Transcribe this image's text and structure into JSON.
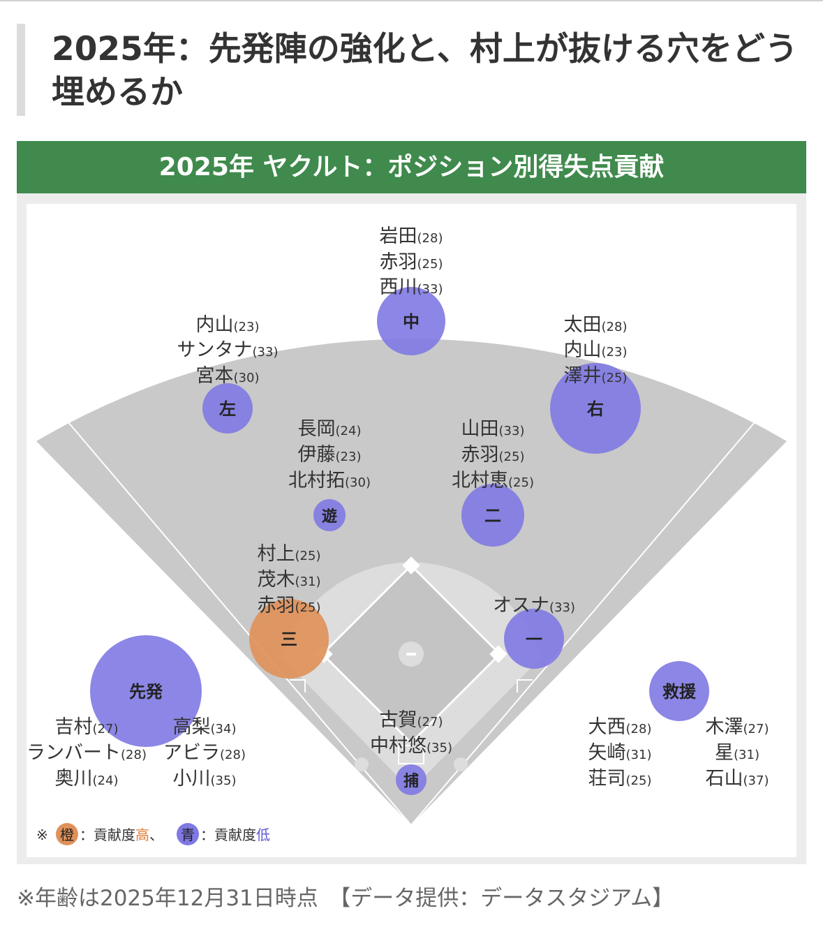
{
  "heading": "2025年：先発陣の強化と、村上が抜ける穴をどう埋めるか",
  "banner": "2025年 ヤクルト：ポジション別得失点貢献",
  "colors": {
    "banner": "#3f8a4c",
    "high": "#e0915a",
    "low": "#7f79e3",
    "field": "#c9c9c9",
    "infield": "#dddddd"
  },
  "positions": {
    "cf": {
      "label": "中",
      "players": [
        {
          "name": "岩田",
          "age": "(28)"
        },
        {
          "name": "赤羽",
          "age": "(25)"
        },
        {
          "name": "西川",
          "age": "(33)"
        }
      ]
    },
    "lf": {
      "label": "左",
      "players": [
        {
          "name": "内山",
          "age": "(23)"
        },
        {
          "name": "サンタナ",
          "age": "(33)"
        },
        {
          "name": "宮本",
          "age": "(30)"
        }
      ]
    },
    "rf": {
      "label": "右",
      "players": [
        {
          "name": "太田",
          "age": "(28)"
        },
        {
          "name": "内山",
          "age": "(23)"
        },
        {
          "name": "澤井",
          "age": "(25)"
        }
      ]
    },
    "ss": {
      "label": "遊",
      "players": [
        {
          "name": "長岡",
          "age": "(24)"
        },
        {
          "name": "伊藤",
          "age": "(23)"
        },
        {
          "name": "北村拓",
          "age": "(30)"
        }
      ]
    },
    "2b": {
      "label": "二",
      "players": [
        {
          "name": "山田",
          "age": "(33)"
        },
        {
          "name": "赤羽",
          "age": "(25)"
        },
        {
          "name": "北村恵",
          "age": "(25)"
        }
      ]
    },
    "3b": {
      "label": "三",
      "players": [
        {
          "name": "村上",
          "age": "(25)"
        },
        {
          "name": "茂木",
          "age": "(31)"
        },
        {
          "name": "赤羽",
          "age": "(25)"
        }
      ]
    },
    "1b": {
      "label": "一",
      "players": [
        {
          "name": "オスナ",
          "age": "(33)"
        }
      ]
    },
    "c": {
      "label": "捕",
      "players": [
        {
          "name": "古賀",
          "age": "(27)"
        },
        {
          "name": "中村悠",
          "age": "(35)"
        }
      ]
    },
    "sp": {
      "label": "先発",
      "players": [
        {
          "name": "吉村",
          "age": "(27)"
        },
        {
          "name": "ランバート",
          "age": "(28)"
        },
        {
          "name": "奥川",
          "age": "(24)"
        },
        {
          "name": "高梨",
          "age": "(34)"
        },
        {
          "name": "アビラ",
          "age": "(28)"
        },
        {
          "name": "小川",
          "age": "(35)"
        }
      ]
    },
    "rp": {
      "label": "救援",
      "players": [
        {
          "name": "大西",
          "age": "(28)"
        },
        {
          "name": "矢崎",
          "age": "(31)"
        },
        {
          "name": "荘司",
          "age": "(25)"
        },
        {
          "name": "木澤",
          "age": "(27)"
        },
        {
          "name": "星",
          "age": "(31)"
        },
        {
          "name": "石山",
          "age": "(37)"
        }
      ]
    }
  },
  "legend": {
    "prefix": "※",
    "orange_mark": "橙",
    "orange_text": "：貢献度",
    "orange_level": "高",
    "separator": "、",
    "blue_mark": "青",
    "blue_text": "：貢献度",
    "blue_level": "低"
  },
  "footnote": "※年齢は2025年12月31日時点　【データ提供：データスタジアム】"
}
